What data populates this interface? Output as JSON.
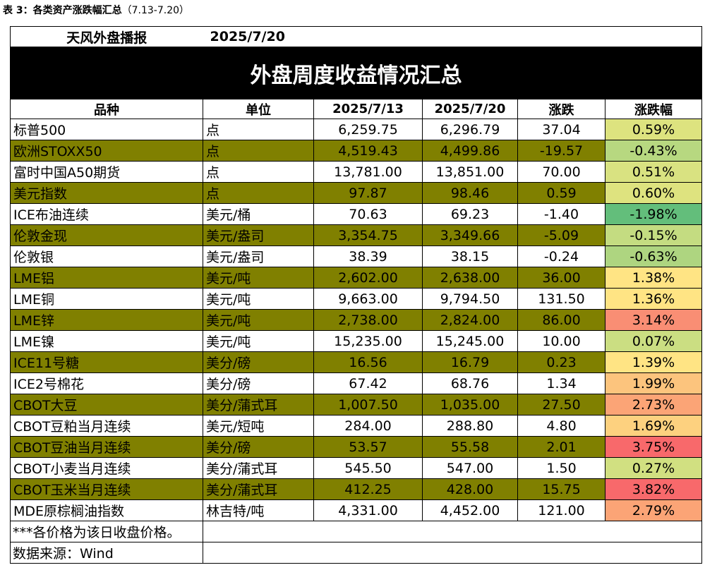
{
  "caption": {
    "label": "表 3：各类资产涨跌幅汇总",
    "range": "（7.13-7.20）"
  },
  "header": {
    "publisher": "天风外盘播报",
    "date": "2025/7/20"
  },
  "title": "外盘周度收益情况汇总",
  "columns": [
    "品种",
    "单位",
    "2025/7/13",
    "2025/7/20",
    "涨跌",
    "涨跌幅"
  ],
  "rows": [
    {
      "name": "标普500",
      "unit": "点",
      "prev": "6,259.75",
      "curr": "6,296.79",
      "chg": "37.04",
      "pct": "0.59%",
      "color": "#dde37f",
      "shaded": false
    },
    {
      "name": "欧洲STOXX50",
      "unit": "点",
      "prev": "4,519.43",
      "curr": "4,499.86",
      "chg": "-19.57",
      "pct": "-0.43%",
      "color": "#b7d880",
      "shaded": true
    },
    {
      "name": "富时中国A50期货",
      "unit": "点",
      "prev": "13,781.00",
      "curr": "13,851.00",
      "chg": "70.00",
      "pct": "0.51%",
      "color": "#d9e281",
      "shaded": false
    },
    {
      "name": "美元指数",
      "unit": "点",
      "prev": "97.87",
      "curr": "98.46",
      "chg": "0.59",
      "pct": "0.60%",
      "color": "#dee37f",
      "shaded": true
    },
    {
      "name": "ICE布油连续",
      "unit": "美元/桶",
      "prev": "70.63",
      "curr": "69.23",
      "chg": "-1.40",
      "pct": "-1.98%",
      "color": "#63be7b",
      "shaded": false
    },
    {
      "name": "伦敦金现",
      "unit": "美元/盎司",
      "prev": "3,354.75",
      "curr": "3,349.66",
      "chg": "-5.09",
      "pct": "-0.15%",
      "color": "#c4dc81",
      "shaded": true
    },
    {
      "name": "伦敦银",
      "unit": "美元/盎司",
      "prev": "38.39",
      "curr": "38.15",
      "chg": "-0.24",
      "pct": "-0.63%",
      "color": "#aed580",
      "shaded": false
    },
    {
      "name": "LME铝",
      "unit": "美元/吨",
      "prev": "2,602.00",
      "curr": "2,638.00",
      "chg": "36.00",
      "pct": "1.38%",
      "color": "#ffe484",
      "shaded": true
    },
    {
      "name": "LME铜",
      "unit": "美元/吨",
      "prev": "9,663.00",
      "curr": "9,794.50",
      "chg": "131.50",
      "pct": "1.36%",
      "color": "#ffe484",
      "shaded": false
    },
    {
      "name": "LME锌",
      "unit": "美元/吨",
      "prev": "2,738.00",
      "curr": "2,824.00",
      "chg": "86.00",
      "pct": "3.14%",
      "color": "#f98e74",
      "shaded": true
    },
    {
      "name": "LME镍",
      "unit": "美元/吨",
      "prev": "15,235.00",
      "curr": "15,245.00",
      "chg": "10.00",
      "pct": "0.07%",
      "color": "#cbde82",
      "shaded": false
    },
    {
      "name": "ICE11号糖",
      "unit": "美分/磅",
      "prev": "16.56",
      "curr": "16.79",
      "chg": "0.23",
      "pct": "1.39%",
      "color": "#ffe484",
      "shaded": true
    },
    {
      "name": "ICE2号棉花",
      "unit": "美分/磅",
      "prev": "67.42",
      "curr": "68.76",
      "chg": "1.34",
      "pct": "1.99%",
      "color": "#fcc47d",
      "shaded": false
    },
    {
      "name": "CBOT大豆",
      "unit": "美分/蒲式耳",
      "prev": "1,007.50",
      "curr": "1,035.00",
      "chg": "27.50",
      "pct": "2.73%",
      "color": "#fba476",
      "shaded": true
    },
    {
      "name": "CBOT豆粕当月连续",
      "unit": "美元/短吨",
      "prev": "284.00",
      "curr": "288.80",
      "chg": "4.80",
      "pct": "1.69%",
      "color": "#fdd17f",
      "shaded": false
    },
    {
      "name": "CBOT豆油当月连续",
      "unit": "美分/磅",
      "prev": "53.57",
      "curr": "55.58",
      "chg": "2.01",
      "pct": "3.75%",
      "color": "#f8696b",
      "shaded": true
    },
    {
      "name": "CBOT小麦当月连续",
      "unit": "美分/蒲式耳",
      "prev": "545.50",
      "curr": "547.00",
      "chg": "1.50",
      "pct": "0.27%",
      "color": "#d1e081",
      "shaded": false
    },
    {
      "name": "CBOT玉米当月连续",
      "unit": "美分/蒲式耳",
      "prev": "412.25",
      "curr": "428.00",
      "chg": "15.75",
      "pct": "3.82%",
      "color": "#f8696b",
      "shaded": true
    },
    {
      "name": "MDE原棕榈油指数",
      "unit": "林吉特/吨",
      "prev": "4,331.00",
      "curr": "4,452.00",
      "chg": "121.00",
      "pct": "2.79%",
      "color": "#fba476",
      "shaded": false
    }
  ],
  "notes": [
    "***各价格为该日收盘价格。",
    "数据来源：Wind"
  ],
  "colors": {
    "row_shade": "#808000",
    "title_bg": "#000000"
  }
}
